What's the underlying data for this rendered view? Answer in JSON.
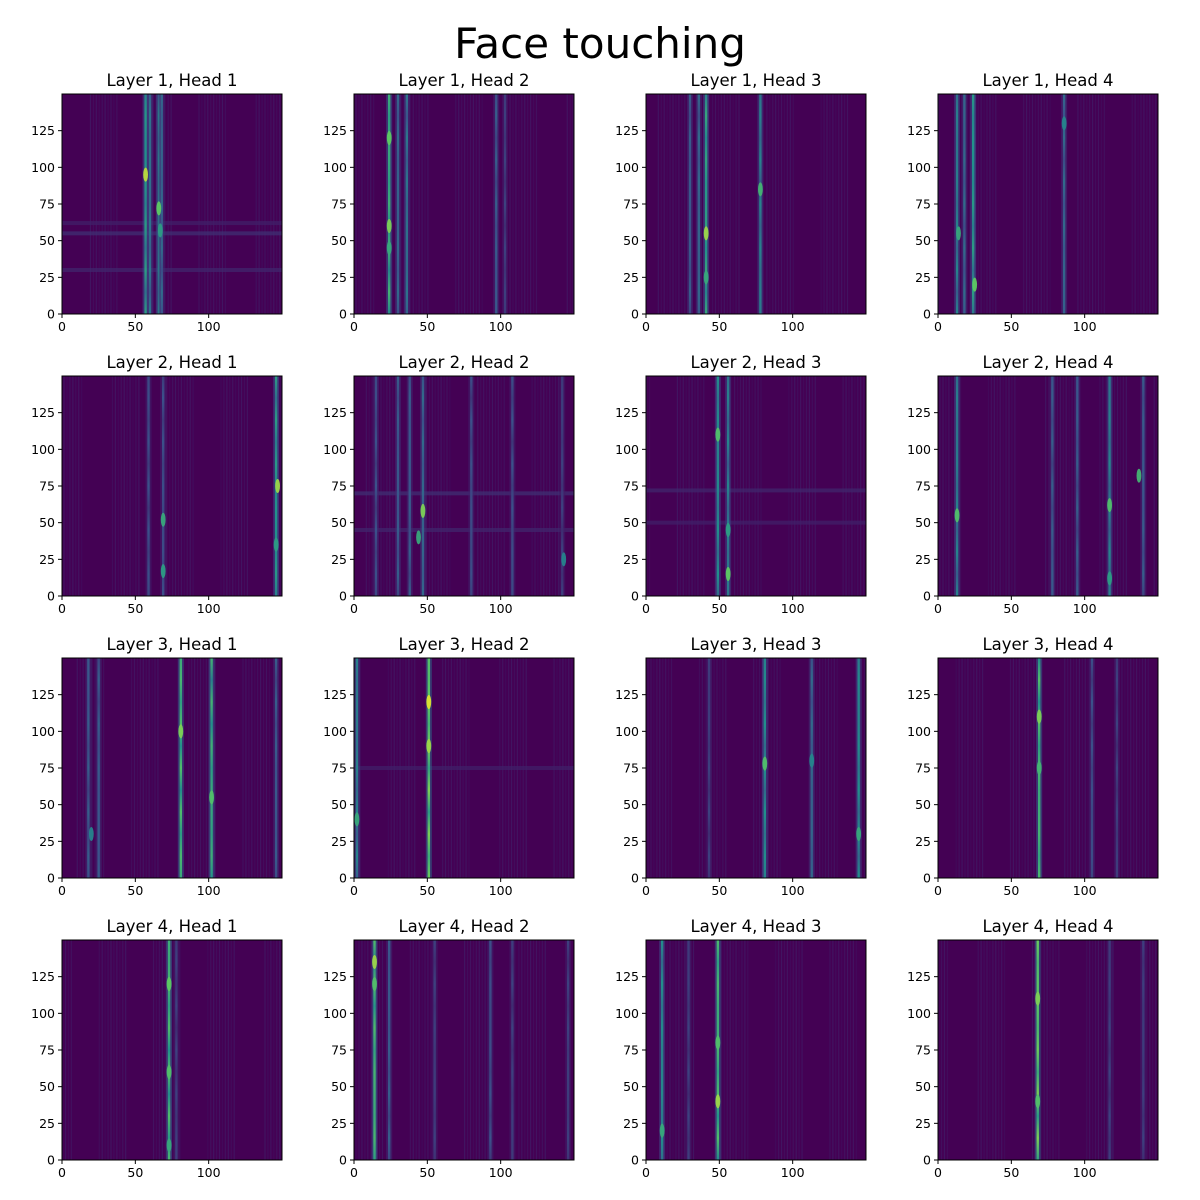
{
  "figure": {
    "suptitle": "Face touching"
  },
  "chart_data": {
    "type": "heatmap",
    "title": "Face touching",
    "colormap": "viridis",
    "background_color": "#440154",
    "highlight_color": "#fde725",
    "mid_color": "#21918c",
    "xlim": [
      0,
      150
    ],
    "ylim": [
      0,
      150
    ],
    "xticks": [
      0,
      50,
      100
    ],
    "yticks": [
      0,
      25,
      50,
      75,
      100,
      125
    ],
    "grid": false,
    "panels": [
      {
        "title": "Layer 1, Head 1",
        "layer": 1,
        "head": 1,
        "columns": [
          {
            "x": 57,
            "s": 0.55
          },
          {
            "x": 60,
            "s": 0.4
          },
          {
            "x": 66,
            "s": 0.45
          },
          {
            "x": 68,
            "s": 0.35
          }
        ],
        "rows": [
          {
            "y": 30,
            "s": 0.12
          },
          {
            "y": 55,
            "s": 0.15
          },
          {
            "y": 62,
            "s": 0.1
          }
        ],
        "spots": [
          {
            "x": 57,
            "y": 95,
            "s": 0.9
          },
          {
            "x": 66,
            "y": 72,
            "s": 0.75
          },
          {
            "x": 67,
            "y": 57,
            "s": 0.55
          }
        ]
      },
      {
        "title": "Layer 1, Head 2",
        "layer": 1,
        "head": 2,
        "columns": [
          {
            "x": 24,
            "s": 0.65
          },
          {
            "x": 30,
            "s": 0.35
          },
          {
            "x": 36,
            "s": 0.4
          },
          {
            "x": 97,
            "s": 0.3
          },
          {
            "x": 103,
            "s": 0.2
          }
        ],
        "rows": [],
        "spots": [
          {
            "x": 24,
            "y": 120,
            "s": 0.75
          },
          {
            "x": 24,
            "y": 60,
            "s": 0.8
          },
          {
            "x": 24,
            "y": 45,
            "s": 0.6
          }
        ]
      },
      {
        "title": "Layer 1, Head 3",
        "layer": 1,
        "head": 3,
        "columns": [
          {
            "x": 30,
            "s": 0.3
          },
          {
            "x": 36,
            "s": 0.35
          },
          {
            "x": 41,
            "s": 0.6
          },
          {
            "x": 78,
            "s": 0.45
          }
        ],
        "rows": [],
        "spots": [
          {
            "x": 41,
            "y": 55,
            "s": 0.85
          },
          {
            "x": 41,
            "y": 25,
            "s": 0.6
          },
          {
            "x": 78,
            "y": 85,
            "s": 0.65
          }
        ]
      },
      {
        "title": "Layer 1, Head 4",
        "layer": 1,
        "head": 4,
        "columns": [
          {
            "x": 13,
            "s": 0.45
          },
          {
            "x": 18,
            "s": 0.35
          },
          {
            "x": 24,
            "s": 0.55
          },
          {
            "x": 86,
            "s": 0.35
          }
        ],
        "rows": [],
        "spots": [
          {
            "x": 25,
            "y": 20,
            "s": 0.75
          },
          {
            "x": 14,
            "y": 55,
            "s": 0.6
          },
          {
            "x": 86,
            "y": 130,
            "s": 0.45
          }
        ]
      },
      {
        "title": "Layer 2, Head 1",
        "layer": 2,
        "head": 1,
        "columns": [
          {
            "x": 146,
            "s": 0.55
          },
          {
            "x": 59,
            "s": 0.25
          },
          {
            "x": 69,
            "s": 0.25
          }
        ],
        "rows": [],
        "spots": [
          {
            "x": 147,
            "y": 75,
            "s": 0.85
          },
          {
            "x": 146,
            "y": 35,
            "s": 0.55
          },
          {
            "x": 69,
            "y": 52,
            "s": 0.6
          },
          {
            "x": 69,
            "y": 17,
            "s": 0.55
          }
        ]
      },
      {
        "title": "Layer 2, Head 2",
        "layer": 2,
        "head": 2,
        "columns": [
          {
            "x": 15,
            "s": 0.25
          },
          {
            "x": 30,
            "s": 0.3
          },
          {
            "x": 38,
            "s": 0.3
          },
          {
            "x": 47,
            "s": 0.35
          },
          {
            "x": 80,
            "s": 0.25
          },
          {
            "x": 108,
            "s": 0.25
          },
          {
            "x": 142,
            "s": 0.2
          }
        ],
        "rows": [
          {
            "y": 70,
            "s": 0.15
          },
          {
            "y": 45,
            "s": 0.12
          }
        ],
        "spots": [
          {
            "x": 47,
            "y": 58,
            "s": 0.8
          },
          {
            "x": 44,
            "y": 40,
            "s": 0.6
          },
          {
            "x": 143,
            "y": 25,
            "s": 0.45
          }
        ]
      },
      {
        "title": "Layer 2, Head 3",
        "layer": 2,
        "head": 3,
        "columns": [
          {
            "x": 49,
            "s": 0.5
          },
          {
            "x": 56,
            "s": 0.45
          }
        ],
        "rows": [
          {
            "y": 72,
            "s": 0.12
          },
          {
            "y": 50,
            "s": 0.1
          }
        ],
        "spots": [
          {
            "x": 49,
            "y": 110,
            "s": 0.7
          },
          {
            "x": 56,
            "y": 15,
            "s": 0.75
          },
          {
            "x": 56,
            "y": 45,
            "s": 0.55
          }
        ]
      },
      {
        "title": "Layer 2, Head 4",
        "layer": 2,
        "head": 4,
        "columns": [
          {
            "x": 13,
            "s": 0.45
          },
          {
            "x": 78,
            "s": 0.3
          },
          {
            "x": 95,
            "s": 0.3
          },
          {
            "x": 117,
            "s": 0.45
          },
          {
            "x": 140,
            "s": 0.3
          }
        ],
        "rows": [],
        "spots": [
          {
            "x": 13,
            "y": 55,
            "s": 0.7
          },
          {
            "x": 117,
            "y": 62,
            "s": 0.7
          },
          {
            "x": 137,
            "y": 82,
            "s": 0.65
          },
          {
            "x": 117,
            "y": 12,
            "s": 0.55
          }
        ]
      },
      {
        "title": "Layer 3, Head 1",
        "layer": 3,
        "head": 1,
        "columns": [
          {
            "x": 18,
            "s": 0.3
          },
          {
            "x": 25,
            "s": 0.3
          },
          {
            "x": 81,
            "s": 0.7
          },
          {
            "x": 102,
            "s": 0.65
          },
          {
            "x": 146,
            "s": 0.3
          }
        ],
        "rows": [],
        "spots": [
          {
            "x": 81,
            "y": 100,
            "s": 0.8
          },
          {
            "x": 102,
            "y": 55,
            "s": 0.7
          },
          {
            "x": 20,
            "y": 30,
            "s": 0.45
          }
        ]
      },
      {
        "title": "Layer 3, Head 2",
        "layer": 3,
        "head": 2,
        "columns": [
          {
            "x": 51,
            "s": 0.8
          },
          {
            "x": 2,
            "s": 0.45
          }
        ],
        "rows": [
          {
            "y": 75,
            "s": 0.1
          }
        ],
        "spots": [
          {
            "x": 51,
            "y": 120,
            "s": 0.95
          },
          {
            "x": 51,
            "y": 90,
            "s": 0.85
          },
          {
            "x": 2,
            "y": 40,
            "s": 0.6
          }
        ]
      },
      {
        "title": "Layer 3, Head 3",
        "layer": 3,
        "head": 3,
        "columns": [
          {
            "x": 81,
            "s": 0.5
          },
          {
            "x": 113,
            "s": 0.35
          },
          {
            "x": 145,
            "s": 0.5
          },
          {
            "x": 43,
            "s": 0.2
          }
        ],
        "rows": [],
        "spots": [
          {
            "x": 81,
            "y": 78,
            "s": 0.7
          },
          {
            "x": 145,
            "y": 30,
            "s": 0.6
          },
          {
            "x": 113,
            "y": 80,
            "s": 0.45
          }
        ]
      },
      {
        "title": "Layer 3, Head 4",
        "layer": 3,
        "head": 4,
        "columns": [
          {
            "x": 69,
            "s": 0.7
          },
          {
            "x": 105,
            "s": 0.25
          },
          {
            "x": 122,
            "s": 0.2
          }
        ],
        "rows": [],
        "spots": [
          {
            "x": 69,
            "y": 110,
            "s": 0.8
          },
          {
            "x": 69,
            "y": 75,
            "s": 0.65
          }
        ]
      },
      {
        "title": "Layer 4, Head 1",
        "layer": 4,
        "head": 1,
        "columns": [
          {
            "x": 73,
            "s": 0.7
          },
          {
            "x": 78,
            "s": 0.2
          }
        ],
        "rows": [],
        "spots": [
          {
            "x": 73,
            "y": 120,
            "s": 0.75
          },
          {
            "x": 73,
            "y": 60,
            "s": 0.7
          },
          {
            "x": 73,
            "y": 10,
            "s": 0.6
          }
        ]
      },
      {
        "title": "Layer 4, Head 2",
        "layer": 4,
        "head": 2,
        "columns": [
          {
            "x": 14,
            "s": 0.7
          },
          {
            "x": 24,
            "s": 0.3
          },
          {
            "x": 55,
            "s": 0.2
          },
          {
            "x": 93,
            "s": 0.25
          },
          {
            "x": 108,
            "s": 0.2
          },
          {
            "x": 146,
            "s": 0.2
          }
        ],
        "rows": [],
        "spots": [
          {
            "x": 14,
            "y": 135,
            "s": 0.85
          },
          {
            "x": 14,
            "y": 120,
            "s": 0.7
          }
        ]
      },
      {
        "title": "Layer 4, Head 3",
        "layer": 4,
        "head": 3,
        "columns": [
          {
            "x": 11,
            "s": 0.5
          },
          {
            "x": 49,
            "s": 0.7
          },
          {
            "x": 29,
            "s": 0.2
          }
        ],
        "rows": [],
        "spots": [
          {
            "x": 49,
            "y": 40,
            "s": 0.85
          },
          {
            "x": 49,
            "y": 80,
            "s": 0.7
          },
          {
            "x": 11,
            "y": 20,
            "s": 0.6
          }
        ]
      },
      {
        "title": "Layer 4, Head 4",
        "layer": 4,
        "head": 4,
        "columns": [
          {
            "x": 68,
            "s": 0.8
          },
          {
            "x": 117,
            "s": 0.2
          },
          {
            "x": 140,
            "s": 0.2
          }
        ],
        "rows": [],
        "spots": [
          {
            "x": 68,
            "y": 110,
            "s": 0.8
          },
          {
            "x": 68,
            "y": 40,
            "s": 0.7
          }
        ]
      }
    ]
  }
}
